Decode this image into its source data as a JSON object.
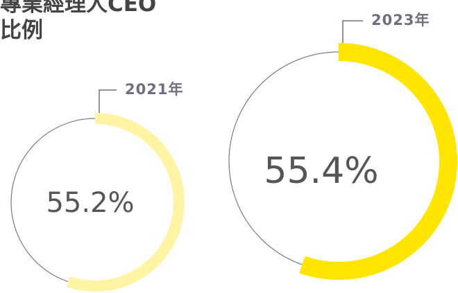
{
  "chart_data": {
    "type": "donut",
    "title": "專業經理人CEO比例",
    "categories": [
      "2021年",
      "2023年"
    ],
    "values": [
      55.2,
      55.4
    ],
    "value_labels": [
      "55.2%",
      "55.4%"
    ],
    "colors": [
      "#fff4a3",
      "#ffe500"
    ],
    "track_color": "#7a7a7a"
  }
}
